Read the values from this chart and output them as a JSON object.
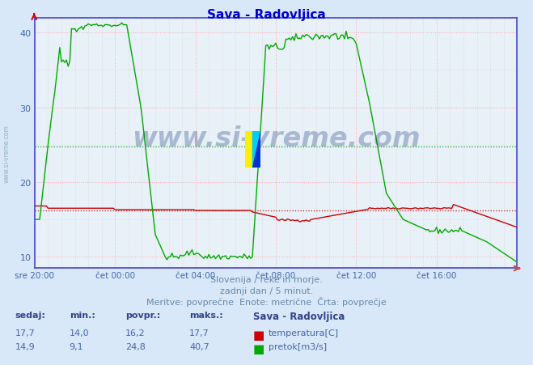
{
  "title": "Sava - Radovljica",
  "title_color": "#0000cc",
  "bg_color": "#d8e8f8",
  "plot_bg_color": "#e8f0f8",
  "x_tick_labels": [
    "sre 20:00",
    "čet 00:00",
    "čet 04:00",
    "čet 08:00",
    "čet 12:00",
    "čet 16:00"
  ],
  "x_tick_positions": [
    0,
    48,
    96,
    144,
    192,
    240
  ],
  "ylim": [
    8.5,
    42
  ],
  "yticks": [
    10,
    20,
    30,
    40
  ],
  "n_points": 289,
  "avg_temp": 16.2,
  "avg_flow": 24.8,
  "footer_line1": "Slovenija / reke in morje.",
  "footer_line2": "zadnji dan / 5 minut.",
  "footer_line3": "Meritve: povprečne  Enote: metrične  Črta: povprečje",
  "footer_color": "#6688aa",
  "table_header": [
    "sedaj:",
    "min.:",
    "povpr.:",
    "maks.:",
    "Sava - Radovljica"
  ],
  "table_temp": [
    "17,7",
    "14,0",
    "16,2",
    "17,7"
  ],
  "table_flow": [
    "14,9",
    "9,1",
    "24,8",
    "40,7"
  ],
  "temp_color": "#cc0000",
  "flow_color": "#00aa00",
  "temp_label": "temperatura[C]",
  "flow_label": "pretok[m3/s]",
  "watermark": "www.si-vreme.com",
  "watermark_color": "#1a3a7a",
  "watermark_alpha": 0.3,
  "side_watermark": "www.si-vreme.com",
  "side_watermark_color": "#6688aa",
  "side_watermark_alpha": 0.6,
  "major_grid_color": "#ffaaaa",
  "minor_grid_color": "#ddcccc",
  "spine_color": "#4444cc",
  "tick_color": "#4466aa",
  "logo_yellow": "#ffee00",
  "logo_cyan": "#00ccff",
  "logo_blue": "#0033cc"
}
